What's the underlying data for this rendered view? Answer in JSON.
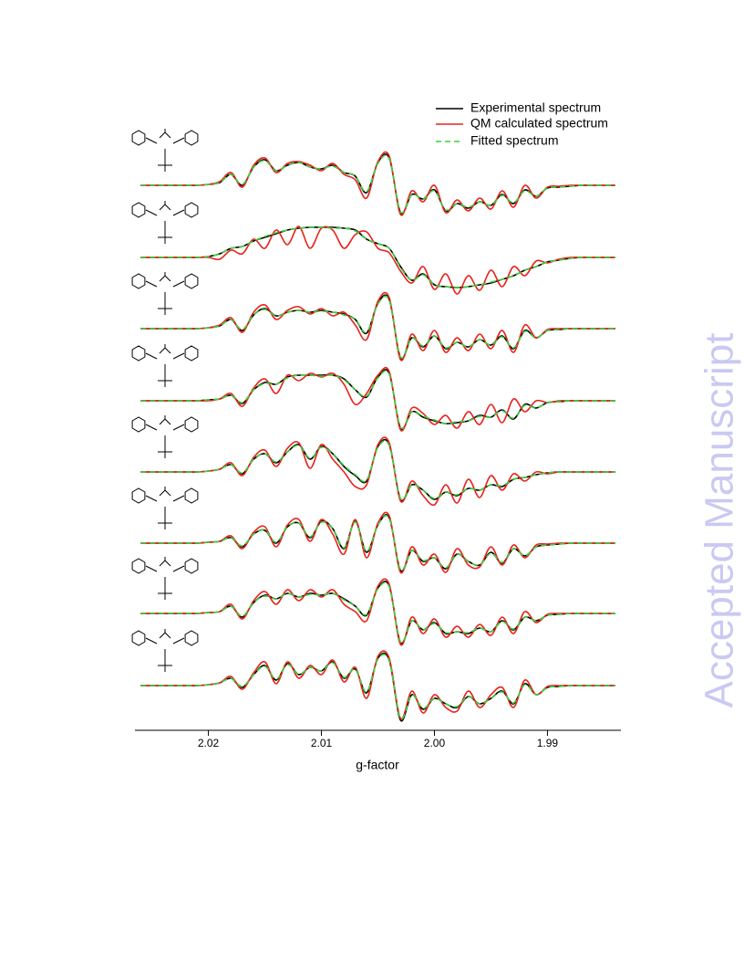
{
  "watermark": "Accepted Manuscript",
  "chart_data": {
    "type": "line",
    "xlabel": "g-factor",
    "legend": "upper right",
    "xlim": [
      2.0265,
      1.9835
    ],
    "xticks": [
      2.02,
      2.01,
      {
        "value": 2.0,
        "label": "2.00"
      },
      1.99
    ],
    "x": [
      2.026,
      2.025,
      2.024,
      2.023,
      2.022,
      2.021,
      2.02,
      2.019,
      2.018,
      2.017,
      2.016,
      2.015,
      2.014,
      2.013,
      2.012,
      2.011,
      2.01,
      2.009,
      2.008,
      2.007,
      2.006,
      2.005,
      2.004,
      2.003,
      2.002,
      2.001,
      2.0,
      1.999,
      1.998,
      1.997,
      1.996,
      1.995,
      1.994,
      1.993,
      1.992,
      1.991,
      1.99,
      1.989,
      1.988,
      1.987,
      1.986,
      1.985,
      1.984
    ],
    "series": [
      {
        "name": "Experimental spectrum",
        "color": "#000000",
        "dashed": false,
        "values": [
          [
            0,
            0,
            0,
            0,
            0,
            0,
            1,
            3,
            12,
            0,
            20,
            28,
            16,
            22,
            25,
            20,
            18,
            22,
            14,
            10,
            -8,
            25,
            30,
            -30,
            -10,
            -15,
            -5,
            -28,
            -20,
            -25,
            -18,
            -22,
            -10,
            -20,
            -5,
            -12,
            -3,
            -2,
            -1,
            0,
            0,
            0,
            0
          ],
          [
            0,
            0,
            0,
            0,
            0,
            0,
            1,
            4,
            10,
            12,
            18,
            22,
            26,
            30,
            32,
            33,
            33,
            33,
            32,
            30,
            20,
            15,
            10,
            -10,
            -25,
            -18,
            -30,
            -32,
            -33,
            -32,
            -30,
            -28,
            -24,
            -20,
            -14,
            -10,
            -5,
            -3,
            -1,
            0,
            0,
            0,
            0
          ],
          [
            0,
            0,
            0,
            0,
            0,
            0,
            1,
            3,
            10,
            -2,
            15,
            22,
            14,
            18,
            20,
            18,
            20,
            18,
            16,
            10,
            -5,
            28,
            32,
            -32,
            -10,
            -20,
            -8,
            -22,
            -15,
            -20,
            -12,
            -18,
            -8,
            -22,
            -2,
            -10,
            -2,
            -1,
            0,
            0,
            0,
            0,
            0
          ],
          [
            0,
            0,
            0,
            0,
            0,
            0,
            1,
            2,
            6,
            -3,
            12,
            20,
            18,
            26,
            28,
            28,
            28,
            28,
            24,
            12,
            4,
            26,
            30,
            -30,
            -12,
            -18,
            -22,
            -25,
            -24,
            -22,
            -16,
            -18,
            -10,
            -20,
            -4,
            -8,
            -2,
            -1,
            0,
            0,
            0,
            0,
            0
          ],
          [
            0,
            0,
            0,
            0,
            0,
            0,
            1,
            3,
            8,
            -2,
            14,
            20,
            10,
            22,
            30,
            14,
            28,
            20,
            6,
            -4,
            -10,
            28,
            30,
            -30,
            -14,
            -20,
            -30,
            -22,
            -26,
            -18,
            -20,
            -14,
            -16,
            -8,
            -6,
            -3,
            -1,
            0,
            0,
            0,
            0,
            0,
            0
          ],
          [
            0,
            0,
            0,
            0,
            0,
            0,
            1,
            2,
            6,
            -4,
            10,
            14,
            0,
            18,
            22,
            6,
            24,
            16,
            -6,
            24,
            -10,
            20,
            28,
            -30,
            -8,
            -20,
            -16,
            -28,
            -12,
            -20,
            -24,
            -10,
            -22,
            -6,
            -14,
            -4,
            -2,
            -1,
            0,
            0,
            0,
            0,
            0
          ],
          [
            0,
            0,
            0,
            0,
            0,
            0,
            1,
            2,
            8,
            -4,
            12,
            20,
            16,
            22,
            18,
            22,
            20,
            22,
            16,
            8,
            -2,
            28,
            30,
            -32,
            -8,
            -18,
            -10,
            -22,
            -20,
            -22,
            -16,
            -20,
            -8,
            -18,
            -4,
            -8,
            -2,
            -1,
            0,
            0,
            0,
            0,
            0
          ],
          [
            0,
            0,
            0,
            0,
            0,
            0,
            1,
            3,
            8,
            -2,
            12,
            22,
            6,
            24,
            12,
            20,
            16,
            26,
            8,
            18,
            -8,
            30,
            28,
            -38,
            -10,
            -26,
            -14,
            -20,
            -24,
            -12,
            -20,
            -14,
            -6,
            -20,
            2,
            -10,
            -2,
            -1,
            0,
            0,
            0,
            0,
            0
          ]
        ]
      },
      {
        "name": "QM calculated spectrum",
        "color": "#e8221c",
        "dashed": false,
        "values": [
          [
            0,
            0,
            0,
            0,
            0,
            0,
            1,
            4,
            14,
            -2,
            22,
            30,
            14,
            24,
            26,
            22,
            16,
            24,
            12,
            6,
            -14,
            26,
            32,
            -32,
            -6,
            -18,
            0,
            -30,
            -16,
            -28,
            -14,
            -26,
            -6,
            -24,
            0,
            -14,
            -2,
            -1,
            0,
            0,
            0,
            0,
            0
          ],
          [
            0,
            0,
            0,
            0,
            0,
            0,
            0,
            -2,
            8,
            4,
            20,
            10,
            30,
            14,
            34,
            10,
            32,
            30,
            10,
            25,
            28,
            10,
            5,
            -15,
            -28,
            -10,
            -35,
            -18,
            -40,
            -20,
            -36,
            -14,
            -32,
            -10,
            -20,
            -4,
            -6,
            -2,
            0,
            0,
            0,
            0,
            0
          ],
          [
            0,
            0,
            0,
            0,
            0,
            0,
            1,
            4,
            12,
            -4,
            18,
            26,
            10,
            20,
            24,
            16,
            22,
            14,
            18,
            4,
            -12,
            30,
            34,
            -34,
            -6,
            -24,
            -2,
            -26,
            -10,
            -24,
            -6,
            -22,
            -2,
            -26,
            4,
            -10,
            -1,
            0,
            0,
            0,
            0,
            0,
            0
          ],
          [
            0,
            0,
            0,
            0,
            0,
            0,
            0,
            2,
            8,
            -6,
            14,
            24,
            8,
            28,
            22,
            30,
            26,
            30,
            18,
            -4,
            8,
            28,
            32,
            -32,
            -8,
            -14,
            -26,
            -16,
            -30,
            -12,
            -26,
            -4,
            -24,
            2,
            -12,
            0,
            -2,
            0,
            0,
            0,
            0,
            0,
            0
          ],
          [
            0,
            0,
            0,
            0,
            0,
            0,
            1,
            3,
            10,
            -4,
            16,
            24,
            6,
            26,
            32,
            4,
            30,
            14,
            0,
            -16,
            -14,
            30,
            32,
            -32,
            -10,
            -26,
            -36,
            -14,
            -34,
            -8,
            -28,
            -4,
            -20,
            -2,
            -10,
            0,
            -2,
            0,
            0,
            0,
            0,
            0,
            0
          ],
          [
            0,
            0,
            0,
            0,
            0,
            0,
            1,
            2,
            8,
            -6,
            12,
            18,
            -4,
            20,
            26,
            2,
            26,
            10,
            -12,
            26,
            -16,
            22,
            30,
            -32,
            -4,
            -24,
            -12,
            -32,
            -6,
            -24,
            -26,
            -4,
            -24,
            -2,
            -16,
            -2,
            -1,
            0,
            0,
            0,
            0,
            0,
            0
          ],
          [
            0,
            0,
            0,
            0,
            0,
            0,
            1,
            2,
            10,
            -6,
            14,
            24,
            10,
            26,
            14,
            26,
            18,
            26,
            10,
            2,
            -8,
            30,
            32,
            -34,
            -4,
            -22,
            -6,
            -26,
            -14,
            -26,
            -12,
            -24,
            -4,
            -22,
            2,
            -10,
            -1,
            0,
            0,
            0,
            0,
            0,
            0
          ],
          [
            0,
            0,
            0,
            0,
            0,
            0,
            1,
            3,
            10,
            -4,
            14,
            26,
            2,
            26,
            8,
            22,
            12,
            28,
            4,
            20,
            -14,
            32,
            30,
            -36,
            -6,
            -30,
            -10,
            -24,
            -28,
            -6,
            -24,
            -10,
            -2,
            -24,
            6,
            -10,
            -1,
            0,
            0,
            0,
            0,
            0,
            0
          ]
        ]
      },
      {
        "name": "Fitted spectrum",
        "color": "#3cd23c",
        "dashed": true,
        "values": [
          [
            0,
            0,
            0,
            0,
            0,
            0,
            1,
            3,
            12,
            1,
            20,
            27,
            16,
            22,
            25,
            20,
            18,
            21,
            14,
            10,
            -7,
            24,
            29,
            -29,
            -10,
            -15,
            -6,
            -27,
            -20,
            -24,
            -18,
            -22,
            -11,
            -19,
            -6,
            -12,
            -3,
            -2,
            -1,
            0,
            0,
            0,
            0
          ],
          [
            0,
            0,
            0,
            0,
            0,
            0,
            1,
            4,
            10,
            12,
            18,
            23,
            27,
            30,
            32,
            33,
            33,
            32,
            32,
            29,
            20,
            15,
            10,
            -11,
            -25,
            -19,
            -30,
            -32,
            -33,
            -32,
            -30,
            -27,
            -24,
            -20,
            -14,
            -10,
            -5,
            -3,
            -1,
            0,
            0,
            0,
            0
          ],
          [
            0,
            0,
            0,
            0,
            0,
            0,
            1,
            3,
            10,
            -1,
            15,
            21,
            14,
            18,
            20,
            18,
            19,
            18,
            15,
            10,
            -4,
            27,
            31,
            -31,
            -10,
            -19,
            -8,
            -21,
            -15,
            -20,
            -12,
            -18,
            -9,
            -21,
            -3,
            -10,
            -2,
            -1,
            0,
            0,
            0,
            0,
            0
          ],
          [
            0,
            0,
            0,
            0,
            0,
            0,
            1,
            2,
            6,
            -2,
            12,
            19,
            18,
            25,
            28,
            28,
            27,
            28,
            23,
            12,
            5,
            25,
            29,
            -29,
            -12,
            -17,
            -21,
            -25,
            -23,
            -22,
            -17,
            -18,
            -11,
            -19,
            -5,
            -8,
            -2,
            -1,
            0,
            0,
            0,
            0,
            0
          ],
          [
            0,
            0,
            0,
            0,
            0,
            0,
            1,
            3,
            8,
            -1,
            14,
            20,
            11,
            22,
            29,
            15,
            27,
            20,
            7,
            -3,
            -9,
            27,
            29,
            -29,
            -14,
            -20,
            -29,
            -22,
            -25,
            -18,
            -20,
            -14,
            -15,
            -8,
            -6,
            -3,
            -1,
            0,
            0,
            0,
            0,
            0,
            0
          ],
          [
            0,
            0,
            0,
            0,
            0,
            0,
            1,
            2,
            6,
            -3,
            10,
            14,
            1,
            18,
            22,
            7,
            23,
            16,
            -5,
            23,
            -9,
            20,
            27,
            -29,
            -8,
            -19,
            -16,
            -27,
            -12,
            -20,
            -24,
            -11,
            -21,
            -6,
            -14,
            -4,
            -2,
            -1,
            0,
            0,
            0,
            0,
            0
          ],
          [
            0,
            0,
            0,
            0,
            0,
            0,
            1,
            2,
            8,
            -3,
            12,
            19,
            16,
            22,
            18,
            21,
            20,
            22,
            15,
            8,
            -1,
            27,
            29,
            -31,
            -8,
            -18,
            -11,
            -21,
            -20,
            -21,
            -16,
            -20,
            -9,
            -17,
            -4,
            -8,
            -2,
            -1,
            0,
            0,
            0,
            0,
            0
          ],
          [
            0,
            0,
            0,
            0,
            0,
            0,
            1,
            3,
            8,
            -1,
            12,
            21,
            7,
            23,
            12,
            20,
            16,
            25,
            9,
            18,
            -7,
            29,
            27,
            -36,
            -10,
            -25,
            -14,
            -20,
            -23,
            -12,
            -20,
            -14,
            -7,
            -19,
            1,
            -10,
            -2,
            -1,
            0,
            0,
            0,
            0,
            0
          ]
        ]
      }
    ]
  }
}
